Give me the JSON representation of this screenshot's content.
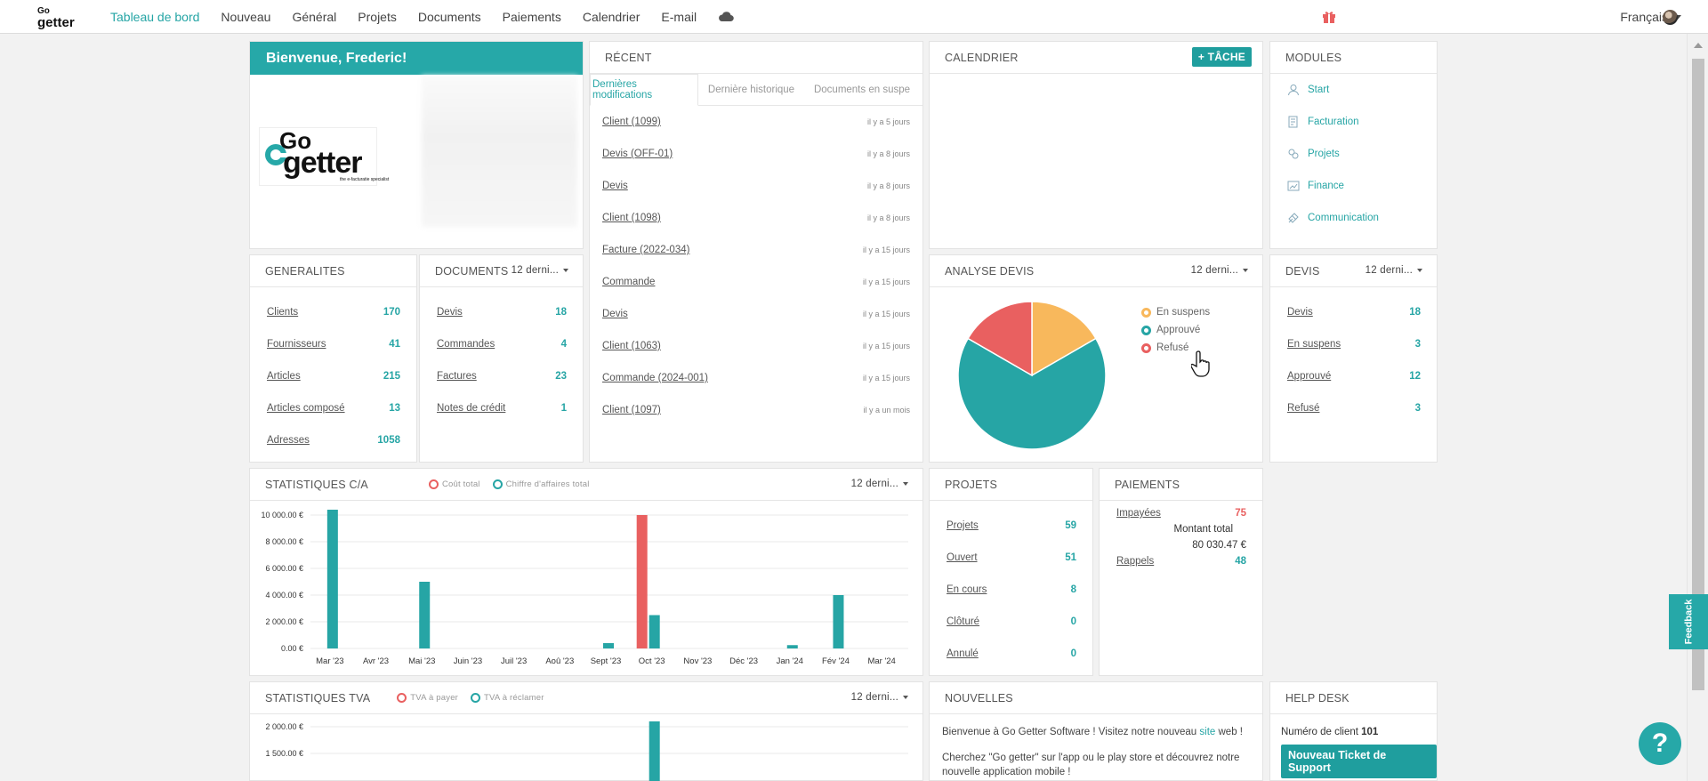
{
  "nav": {
    "logo_top": "Go",
    "logo_bottom": "getter",
    "items": [
      "Tableau de bord",
      "Nouveau",
      "Général",
      "Projets",
      "Documents",
      "Paiements",
      "Calendrier",
      "E-mail"
    ],
    "language": "Français"
  },
  "welcome": {
    "title": "Bienvenue, Frederic!",
    "logo_line1": "Go",
    "logo_line2": "getter",
    "logo_tagline": "the e-facturatie specialist"
  },
  "recent": {
    "title": "RÉCENT",
    "tabs": [
      "Dernières modifications",
      "Dernière historique",
      "Documents en suspe"
    ],
    "rows": [
      {
        "label": "Client (1099)",
        "time": "il y a 5 jours"
      },
      {
        "label": "Devis (OFF-01)",
        "time": "il y a 8 jours"
      },
      {
        "label": "Devis",
        "time": "il y a 8 jours"
      },
      {
        "label": "Client (1098)",
        "time": "il y a 8 jours"
      },
      {
        "label": "Facture (2022-034)",
        "time": "il y a 15 jours"
      },
      {
        "label": "Commande",
        "time": "il y a 15 jours"
      },
      {
        "label": "Devis",
        "time": "il y a 15 jours"
      },
      {
        "label": "Client (1063)",
        "time": "il y a 15 jours"
      },
      {
        "label": "Commande (2024-001)",
        "time": "il y a 15 jours"
      },
      {
        "label": "Client (1097)",
        "time": "il y a un mois"
      }
    ]
  },
  "calendar": {
    "title": "CALENDRIER",
    "add_task": "+ Tâche"
  },
  "modules": {
    "title": "MODULES",
    "items": [
      {
        "label": "Start",
        "icon": "user-icon"
      },
      {
        "label": "Facturation",
        "icon": "invoice-icon"
      },
      {
        "label": "Projets",
        "icon": "projects-icon"
      },
      {
        "label": "Finance",
        "icon": "finance-icon"
      },
      {
        "label": "Communication",
        "icon": "communication-icon"
      }
    ]
  },
  "generalites": {
    "title": "GENERALITES",
    "rows": [
      {
        "label": "Clients",
        "value": "170"
      },
      {
        "label": "Fournisseurs",
        "value": "41"
      },
      {
        "label": "Articles",
        "value": "215"
      },
      {
        "label": "Articles composé",
        "value": "13"
      },
      {
        "label": "Adresses",
        "value": "1058"
      }
    ]
  },
  "documents": {
    "title": "DOCUMENTS",
    "period": "12 derni...",
    "rows": [
      {
        "label": "Devis",
        "value": "18"
      },
      {
        "label": "Commandes",
        "value": "4"
      },
      {
        "label": "Factures",
        "value": "23"
      },
      {
        "label": "Notes de crédit",
        "value": "1"
      }
    ]
  },
  "analyse": {
    "title": "ANALYSE DEVIS",
    "period": "12 derni...",
    "legend": [
      "En suspens",
      "Approuvé",
      "Refusé"
    ]
  },
  "devis": {
    "title": "DEVIS",
    "period": "12 derni...",
    "rows": [
      {
        "label": "Devis",
        "value": "18"
      },
      {
        "label": "En suspens",
        "value": "3"
      },
      {
        "label": "Approuvé",
        "value": "12"
      },
      {
        "label": "Refusé",
        "value": "3"
      }
    ]
  },
  "stats_ca": {
    "title": "STATISTIQUES C/A",
    "period": "12 derni...",
    "legend": [
      "Coût total",
      "Chiffre d'affaires total"
    ]
  },
  "projets": {
    "title": "PROJETS",
    "rows": [
      {
        "label": "Projets",
        "value": "59"
      },
      {
        "label": "Ouvert",
        "value": "51"
      },
      {
        "label": "En cours",
        "value": "8"
      },
      {
        "label": "Clôturé",
        "value": "0"
      },
      {
        "label": "Annulé",
        "value": "0"
      }
    ]
  },
  "paiements": {
    "title": "PAIEMENTS",
    "impayees_label": "Impayées",
    "impayees_value": "75",
    "total_label": "Montant total",
    "total_value": "80 030.47 €",
    "rappels_label": "Rappels",
    "rappels_value": "48"
  },
  "stats_tva": {
    "title": "STATISTIQUES TVA",
    "period": "12 derni...",
    "legend": [
      "TVA à payer",
      "TVA à réclamer"
    ]
  },
  "nouvelles": {
    "title": "NOUVELLES",
    "line1_a": "Bienvenue à Go Getter Software ! Visitez notre nouveau",
    "line1_link": "site",
    "line1_b": "web !",
    "line2": "Cherchez \"Go getter\" sur l'app ou le play store et découvrez notre nouvelle application mobile !"
  },
  "helpdesk": {
    "title": "HELP DESK",
    "client_label": "Numéro de client",
    "client_value": "101",
    "button": "Nouveau Ticket de Support"
  },
  "feedback": "Feedback",
  "help_symbol": "?",
  "colors": {
    "teal": "#26a5a5",
    "red": "#e96060",
    "orange": "#f8b85c"
  },
  "chart_data": [
    {
      "type": "pie",
      "title": "ANALYSE DEVIS",
      "labels": [
        "En suspens",
        "Approuvé",
        "Refusé"
      ],
      "values": [
        3,
        12,
        3
      ],
      "colors": [
        "#f8b85c",
        "#26a5a5",
        "#e96060"
      ]
    },
    {
      "type": "bar",
      "title": "STATISTIQUES C/A",
      "categories": [
        "Mar '23",
        "Avr '23",
        "Mai '23",
        "Juin '23",
        "Juil '23",
        "Aoû '23",
        "Sept '23",
        "Oct '23",
        "Nov '23",
        "Déc '23",
        "Jan '24",
        "Fév '24",
        "Mar '24"
      ],
      "y_ticks": [
        "10 000.00 €",
        "8 000.00 €",
        "6 000.00 €",
        "4 000.00 €",
        "2 000.00 €",
        "0.00 €"
      ],
      "ylim": [
        0,
        10000
      ],
      "series": [
        {
          "name": "Coût total",
          "color": "#e96060",
          "values": [
            0,
            0,
            0,
            0,
            0,
            0,
            0,
            10000,
            0,
            0,
            0,
            0,
            0
          ]
        },
        {
          "name": "Chiffre d'affaires total",
          "color": "#26a5a5",
          "values": [
            10400,
            0,
            5000,
            0,
            0,
            0,
            400,
            2500,
            0,
            0,
            250,
            4000,
            0
          ]
        }
      ]
    },
    {
      "type": "bar",
      "title": "STATISTIQUES TVA",
      "y_ticks": [
        "2 000.00 €",
        "1 500.00 €"
      ],
      "series": [
        {
          "name": "TVA à réclamer",
          "color": "#26a5a5",
          "values": [
            0,
            0,
            0,
            0,
            0,
            0,
            0,
            2100,
            0,
            0,
            0,
            0,
            0
          ]
        }
      ]
    }
  ]
}
